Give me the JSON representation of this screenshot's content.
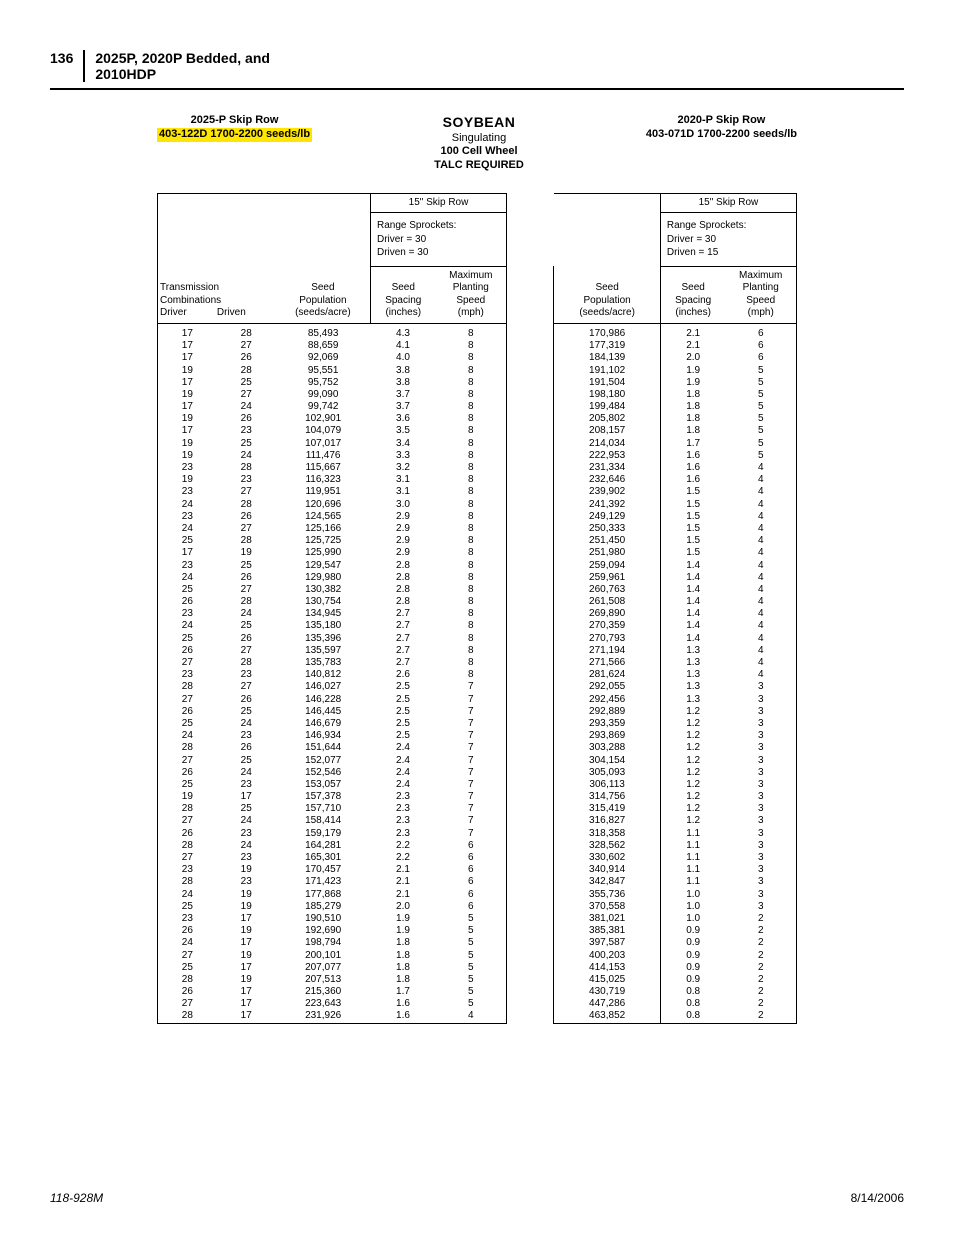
{
  "page": {
    "number": "136",
    "title_line1": "2025P, 2020P Bedded, and",
    "title_line2": "2010HDP",
    "footer_left": "118-928M",
    "footer_right": "8/14/2006"
  },
  "titles": {
    "left_model": "2025-P Skip Row",
    "left_code": "403-122D  1700-2200 seeds/lb",
    "center_big": "SOYBEAN",
    "center_l2": "Singulating",
    "center_l3": "100 Cell Wheel",
    "center_l4": "TALC REQUIRED",
    "right_model": "2020-P Skip Row",
    "right_code": "403-071D  1700-2200 seeds/lb"
  },
  "table": {
    "skip_row_label": "15\" Skip Row",
    "range_label": "Range Sprockets:",
    "driver_label": "Driver = 30",
    "driven_left": "Driven = 30",
    "driven_right": "Driven = 15",
    "hdr_trans1": "Transmission",
    "hdr_trans2": "Combinations",
    "hdr_driver": "Driver",
    "hdr_driven": "Driven",
    "hdr_seed": "Seed",
    "hdr_pop": "Population",
    "hdr_seedsacre": "(seeds/acre)",
    "hdr_spacing": "Spacing",
    "hdr_inches": "(inches)",
    "hdr_max": "Maximum",
    "hdr_plant": "Planting",
    "hdr_speed": "Speed",
    "hdr_mph": "(mph)",
    "rows": [
      {
        "dr": "17",
        "dn": "28",
        "p1": "85,493",
        "s1": "4.3",
        "m1": "8",
        "p2": "170,986",
        "s2": "2.1",
        "m2": "6"
      },
      {
        "dr": "17",
        "dn": "27",
        "p1": "88,659",
        "s1": "4.1",
        "m1": "8",
        "p2": "177,319",
        "s2": "2.1",
        "m2": "6"
      },
      {
        "dr": "17",
        "dn": "26",
        "p1": "92,069",
        "s1": "4.0",
        "m1": "8",
        "p2": "184,139",
        "s2": "2.0",
        "m2": "6"
      },
      {
        "dr": "19",
        "dn": "28",
        "p1": "95,551",
        "s1": "3.8",
        "m1": "8",
        "p2": "191,102",
        "s2": "1.9",
        "m2": "5"
      },
      {
        "dr": "17",
        "dn": "25",
        "p1": "95,752",
        "s1": "3.8",
        "m1": "8",
        "p2": "191,504",
        "s2": "1.9",
        "m2": "5"
      },
      {
        "dr": "19",
        "dn": "27",
        "p1": "99,090",
        "s1": "3.7",
        "m1": "8",
        "p2": "198,180",
        "s2": "1.8",
        "m2": "5"
      },
      {
        "dr": "17",
        "dn": "24",
        "p1": "99,742",
        "s1": "3.7",
        "m1": "8",
        "p2": "199,484",
        "s2": "1.8",
        "m2": "5"
      },
      {
        "dr": "19",
        "dn": "26",
        "p1": "102,901",
        "s1": "3.6",
        "m1": "8",
        "p2": "205,802",
        "s2": "1.8",
        "m2": "5"
      },
      {
        "dr": "17",
        "dn": "23",
        "p1": "104,079",
        "s1": "3.5",
        "m1": "8",
        "p2": "208,157",
        "s2": "1.8",
        "m2": "5"
      },
      {
        "dr": "19",
        "dn": "25",
        "p1": "107,017",
        "s1": "3.4",
        "m1": "8",
        "p2": "214,034",
        "s2": "1.7",
        "m2": "5"
      },
      {
        "dr": "19",
        "dn": "24",
        "p1": "111,476",
        "s1": "3.3",
        "m1": "8",
        "p2": "222,953",
        "s2": "1.6",
        "m2": "5"
      },
      {
        "dr": "23",
        "dn": "28",
        "p1": "115,667",
        "s1": "3.2",
        "m1": "8",
        "p2": "231,334",
        "s2": "1.6",
        "m2": "4"
      },
      {
        "dr": "19",
        "dn": "23",
        "p1": "116,323",
        "s1": "3.1",
        "m1": "8",
        "p2": "232,646",
        "s2": "1.6",
        "m2": "4"
      },
      {
        "dr": "23",
        "dn": "27",
        "p1": "119,951",
        "s1": "3.1",
        "m1": "8",
        "p2": "239,902",
        "s2": "1.5",
        "m2": "4"
      },
      {
        "dr": "24",
        "dn": "28",
        "p1": "120,696",
        "s1": "3.0",
        "m1": "8",
        "p2": "241,392",
        "s2": "1.5",
        "m2": "4"
      },
      {
        "dr": "23",
        "dn": "26",
        "p1": "124,565",
        "s1": "2.9",
        "m1": "8",
        "p2": "249,129",
        "s2": "1.5",
        "m2": "4"
      },
      {
        "dr": "24",
        "dn": "27",
        "p1": "125,166",
        "s1": "2.9",
        "m1": "8",
        "p2": "250,333",
        "s2": "1.5",
        "m2": "4"
      },
      {
        "dr": "25",
        "dn": "28",
        "p1": "125,725",
        "s1": "2.9",
        "m1": "8",
        "p2": "251,450",
        "s2": "1.5",
        "m2": "4"
      },
      {
        "dr": "17",
        "dn": "19",
        "p1": "125,990",
        "s1": "2.9",
        "m1": "8",
        "p2": "251,980",
        "s2": "1.5",
        "m2": "4"
      },
      {
        "dr": "23",
        "dn": "25",
        "p1": "129,547",
        "s1": "2.8",
        "m1": "8",
        "p2": "259,094",
        "s2": "1.4",
        "m2": "4"
      },
      {
        "dr": "24",
        "dn": "26",
        "p1": "129,980",
        "s1": "2.8",
        "m1": "8",
        "p2": "259,961",
        "s2": "1.4",
        "m2": "4"
      },
      {
        "dr": "25",
        "dn": "27",
        "p1": "130,382",
        "s1": "2.8",
        "m1": "8",
        "p2": "260,763",
        "s2": "1.4",
        "m2": "4"
      },
      {
        "dr": "26",
        "dn": "28",
        "p1": "130,754",
        "s1": "2.8",
        "m1": "8",
        "p2": "261,508",
        "s2": "1.4",
        "m2": "4"
      },
      {
        "dr": "23",
        "dn": "24",
        "p1": "134,945",
        "s1": "2.7",
        "m1": "8",
        "p2": "269,890",
        "s2": "1.4",
        "m2": "4"
      },
      {
        "dr": "24",
        "dn": "25",
        "p1": "135,180",
        "s1": "2.7",
        "m1": "8",
        "p2": "270,359",
        "s2": "1.4",
        "m2": "4"
      },
      {
        "dr": "25",
        "dn": "26",
        "p1": "135,396",
        "s1": "2.7",
        "m1": "8",
        "p2": "270,793",
        "s2": "1.4",
        "m2": "4"
      },
      {
        "dr": "26",
        "dn": "27",
        "p1": "135,597",
        "s1": "2.7",
        "m1": "8",
        "p2": "271,194",
        "s2": "1.3",
        "m2": "4"
      },
      {
        "dr": "27",
        "dn": "28",
        "p1": "135,783",
        "s1": "2.7",
        "m1": "8",
        "p2": "271,566",
        "s2": "1.3",
        "m2": "4"
      },
      {
        "dr": "23",
        "dn": "23",
        "p1": "140,812",
        "s1": "2.6",
        "m1": "8",
        "p2": "281,624",
        "s2": "1.3",
        "m2": "4"
      },
      {
        "dr": "28",
        "dn": "27",
        "p1": "146,027",
        "s1": "2.5",
        "m1": "7",
        "p2": "292,055",
        "s2": "1.3",
        "m2": "3"
      },
      {
        "dr": "27",
        "dn": "26",
        "p1": "146,228",
        "s1": "2.5",
        "m1": "7",
        "p2": "292,456",
        "s2": "1.3",
        "m2": "3"
      },
      {
        "dr": "26",
        "dn": "25",
        "p1": "146,445",
        "s1": "2.5",
        "m1": "7",
        "p2": "292,889",
        "s2": "1.2",
        "m2": "3"
      },
      {
        "dr": "25",
        "dn": "24",
        "p1": "146,679",
        "s1": "2.5",
        "m1": "7",
        "p2": "293,359",
        "s2": "1.2",
        "m2": "3"
      },
      {
        "dr": "24",
        "dn": "23",
        "p1": "146,934",
        "s1": "2.5",
        "m1": "7",
        "p2": "293,869",
        "s2": "1.2",
        "m2": "3"
      },
      {
        "dr": "28",
        "dn": "26",
        "p1": "151,644",
        "s1": "2.4",
        "m1": "7",
        "p2": "303,288",
        "s2": "1.2",
        "m2": "3"
      },
      {
        "dr": "27",
        "dn": "25",
        "p1": "152,077",
        "s1": "2.4",
        "m1": "7",
        "p2": "304,154",
        "s2": "1.2",
        "m2": "3"
      },
      {
        "dr": "26",
        "dn": "24",
        "p1": "152,546",
        "s1": "2.4",
        "m1": "7",
        "p2": "305,093",
        "s2": "1.2",
        "m2": "3"
      },
      {
        "dr": "25",
        "dn": "23",
        "p1": "153,057",
        "s1": "2.4",
        "m1": "7",
        "p2": "306,113",
        "s2": "1.2",
        "m2": "3"
      },
      {
        "dr": "19",
        "dn": "17",
        "p1": "157,378",
        "s1": "2.3",
        "m1": "7",
        "p2": "314,756",
        "s2": "1.2",
        "m2": "3"
      },
      {
        "dr": "28",
        "dn": "25",
        "p1": "157,710",
        "s1": "2.3",
        "m1": "7",
        "p2": "315,419",
        "s2": "1.2",
        "m2": "3"
      },
      {
        "dr": "27",
        "dn": "24",
        "p1": "158,414",
        "s1": "2.3",
        "m1": "7",
        "p2": "316,827",
        "s2": "1.2",
        "m2": "3"
      },
      {
        "dr": "26",
        "dn": "23",
        "p1": "159,179",
        "s1": "2.3",
        "m1": "7",
        "p2": "318,358",
        "s2": "1.1",
        "m2": "3"
      },
      {
        "dr": "28",
        "dn": "24",
        "p1": "164,281",
        "s1": "2.2",
        "m1": "6",
        "p2": "328,562",
        "s2": "1.1",
        "m2": "3"
      },
      {
        "dr": "27",
        "dn": "23",
        "p1": "165,301",
        "s1": "2.2",
        "m1": "6",
        "p2": "330,602",
        "s2": "1.1",
        "m2": "3"
      },
      {
        "dr": "23",
        "dn": "19",
        "p1": "170,457",
        "s1": "2.1",
        "m1": "6",
        "p2": "340,914",
        "s2": "1.1",
        "m2": "3"
      },
      {
        "dr": "28",
        "dn": "23",
        "p1": "171,423",
        "s1": "2.1",
        "m1": "6",
        "p2": "342,847",
        "s2": "1.1",
        "m2": "3"
      },
      {
        "dr": "24",
        "dn": "19",
        "p1": "177,868",
        "s1": "2.1",
        "m1": "6",
        "p2": "355,736",
        "s2": "1.0",
        "m2": "3"
      },
      {
        "dr": "25",
        "dn": "19",
        "p1": "185,279",
        "s1": "2.0",
        "m1": "6",
        "p2": "370,558",
        "s2": "1.0",
        "m2": "3"
      },
      {
        "dr": "23",
        "dn": "17",
        "p1": "190,510",
        "s1": "1.9",
        "m1": "5",
        "p2": "381,021",
        "s2": "1.0",
        "m2": "2"
      },
      {
        "dr": "26",
        "dn": "19",
        "p1": "192,690",
        "s1": "1.9",
        "m1": "5",
        "p2": "385,381",
        "s2": "0.9",
        "m2": "2"
      },
      {
        "dr": "24",
        "dn": "17",
        "p1": "198,794",
        "s1": "1.8",
        "m1": "5",
        "p2": "397,587",
        "s2": "0.9",
        "m2": "2"
      },
      {
        "dr": "27",
        "dn": "19",
        "p1": "200,101",
        "s1": "1.8",
        "m1": "5",
        "p2": "400,203",
        "s2": "0.9",
        "m2": "2"
      },
      {
        "dr": "25",
        "dn": "17",
        "p1": "207,077",
        "s1": "1.8",
        "m1": "5",
        "p2": "414,153",
        "s2": "0.9",
        "m2": "2"
      },
      {
        "dr": "28",
        "dn": "19",
        "p1": "207,513",
        "s1": "1.8",
        "m1": "5",
        "p2": "415,025",
        "s2": "0.9",
        "m2": "2"
      },
      {
        "dr": "26",
        "dn": "17",
        "p1": "215,360",
        "s1": "1.7",
        "m1": "5",
        "p2": "430,719",
        "s2": "0.8",
        "m2": "2"
      },
      {
        "dr": "27",
        "dn": "17",
        "p1": "223,643",
        "s1": "1.6",
        "m1": "5",
        "p2": "447,286",
        "s2": "0.8",
        "m2": "2"
      },
      {
        "dr": "28",
        "dn": "17",
        "p1": "231,926",
        "s1": "1.6",
        "m1": "4",
        "p2": "463,852",
        "s2": "0.8",
        "m2": "2"
      }
    ]
  }
}
